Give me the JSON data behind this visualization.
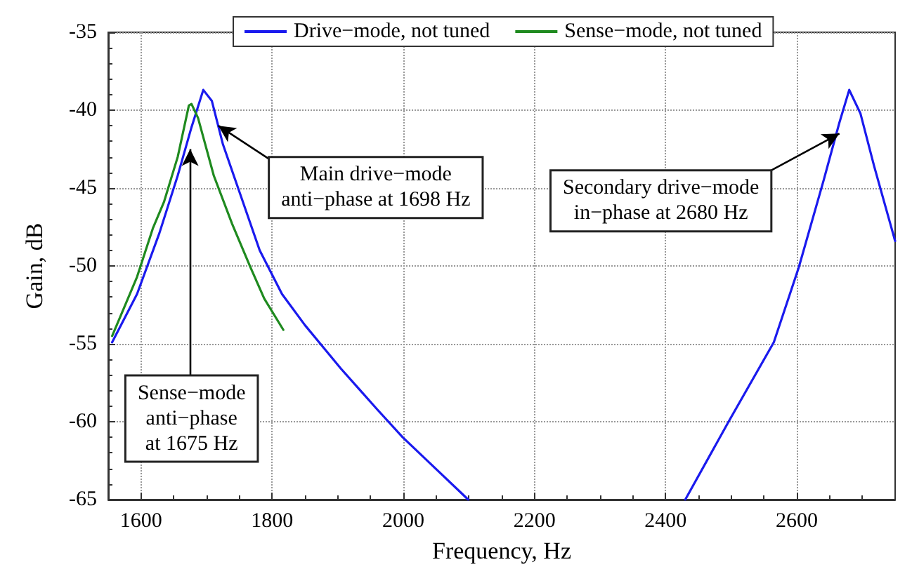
{
  "chart_data": {
    "type": "line",
    "xlabel": "Frequency, Hz",
    "ylabel": "Gain, dB",
    "xlim": [
      1550,
      2750
    ],
    "ylim": [
      -65,
      -35
    ],
    "xticks": [
      1600,
      1800,
      2000,
      2200,
      2400,
      2600
    ],
    "yticks": [
      -65,
      -60,
      -55,
      -50,
      -45,
      -40,
      -35
    ],
    "grid": true,
    "legend": "top",
    "marker": "none",
    "line_style": "solid",
    "series": [
      {
        "name": "Drive−mode, not tuned",
        "color": "#1a1aee",
        "x": [
          1556,
          1594,
          1628,
          1656,
          1677,
          1695,
          1708,
          1725,
          1753,
          1781,
          1815,
          1850,
          1905,
          1960,
          1999,
          2044,
          2099,
          null,
          2430,
          2496,
          2565,
          2603,
          2641,
          2665,
          2680,
          2697,
          2718,
          2750
        ],
        "values": [
          -54.9,
          -51.8,
          -47.9,
          -44.2,
          -41.1,
          -38.7,
          -39.4,
          -42.2,
          -45.6,
          -49.0,
          -51.8,
          -53.8,
          -56.6,
          -59.2,
          -61.0,
          -62.8,
          -65,
          null,
          -65,
          -60,
          -54.9,
          -50.1,
          -44.5,
          -40.8,
          -38.7,
          -40.2,
          -43.6,
          -48.4
        ]
      },
      {
        "name": "Sense−mode, not tuned",
        "color": "#1f8a1f",
        "x": [
          1556,
          1594,
          1618,
          1635,
          1656,
          1673,
          1677,
          1687,
          1711,
          1739,
          1767,
          1788,
          1817
        ],
        "values": [
          -54.5,
          -50.7,
          -47.6,
          -45.9,
          -43.0,
          -39.7,
          -39.6,
          -40.5,
          -44.2,
          -47.3,
          -50.1,
          -52.1,
          -54.1
        ]
      }
    ],
    "annotations": [
      {
        "text": "Main drive−mode\nanti−phase at 1698 Hz",
        "x": 1718,
        "y": -41
      },
      {
        "text": "Sense−mode\nanti−phase\nat 1675 Hz",
        "x": 1675,
        "y": -42.5
      },
      {
        "text": "Secondary drive−mode\nin−phase at 2680 Hz",
        "x": 2665,
        "y": -41.5
      }
    ]
  }
}
